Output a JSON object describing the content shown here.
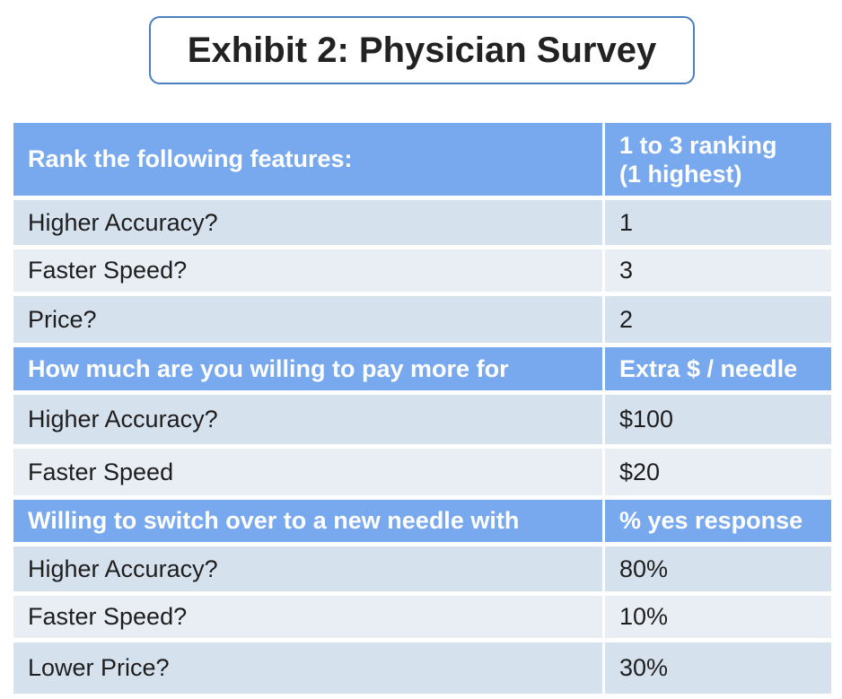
{
  "title": "Exhibit 2: Physician Survey",
  "sections": [
    {
      "header": {
        "left": "Rank the following features:",
        "right_line1": "1 to 3 ranking",
        "right_line2": "(1 highest)"
      },
      "rows": [
        {
          "label": "Higher Accuracy?",
          "value": "1"
        },
        {
          "label": "Faster Speed?",
          "value": "3"
        },
        {
          "label": "Price?",
          "value": "2"
        }
      ]
    },
    {
      "header": {
        "left": "How much are you willing to pay more for",
        "right": "Extra $ / needle"
      },
      "rows": [
        {
          "label": "Higher Accuracy?",
          "value": "$100"
        },
        {
          "label": "Faster Speed",
          "value": "$20"
        }
      ]
    },
    {
      "header": {
        "left": "Willing to switch over to a new needle with",
        "right": "% yes response"
      },
      "rows": [
        {
          "label": "Higher Accuracy?",
          "value": "80%"
        },
        {
          "label": "Faster Speed?",
          "value": "10%"
        },
        {
          "label": "Lower Price?",
          "value": "30%"
        }
      ]
    }
  ]
}
